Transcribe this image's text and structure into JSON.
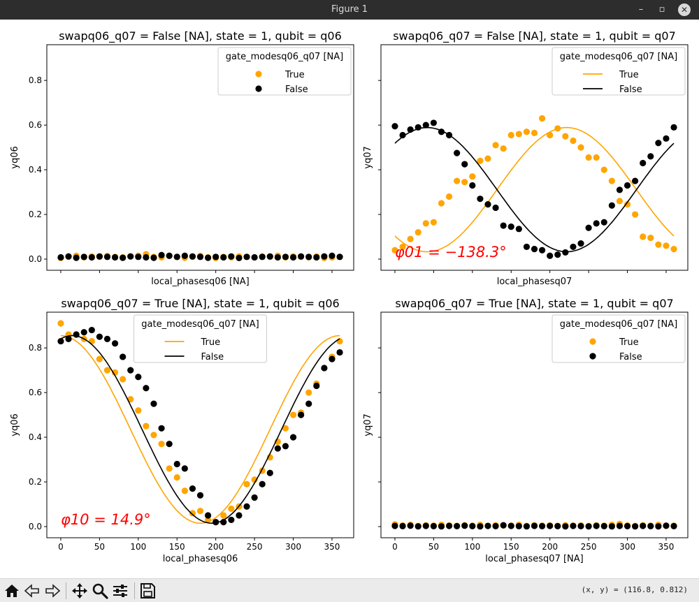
{
  "window": {
    "title": "Figure 1",
    "minimize_glyph": "–",
    "restore_glyph": "▫",
    "close_glyph": "✕"
  },
  "toolbar": {
    "buttons": [
      "home-icon",
      "back-icon",
      "forward-icon",
      "pan-icon",
      "zoom-icon",
      "subplots-icon",
      "save-icon"
    ],
    "coords": "(x, y) = (116.8, 0.812)"
  },
  "colors": {
    "orange": "#ffa500",
    "black": "#000000",
    "annotation": "#ff0000"
  },
  "chart_data": [
    {
      "type": "scatter",
      "title": "swapq06_q07 = False [NA], state = 1, qubit = q06",
      "xlabel": "local_phasesq06 [NA]",
      "ylabel": "yq06",
      "xlim": [
        -18,
        378
      ],
      "ylim": [
        -0.05,
        0.96
      ],
      "show_xticklabels": false,
      "show_yticklabels": true,
      "legend": {
        "title": "gate_modesq06_q07 [NA]",
        "kind": "marker",
        "position": "upper right",
        "entries": [
          "True",
          "False"
        ]
      },
      "series": [
        {
          "name": "True",
          "color": "#ffa500",
          "x": [
            0,
            10,
            20,
            30,
            40,
            50,
            60,
            70,
            80,
            90,
            100,
            110,
            120,
            130,
            140,
            150,
            160,
            170,
            180,
            190,
            200,
            210,
            220,
            230,
            240,
            250,
            260,
            270,
            280,
            290,
            300,
            310,
            320,
            330,
            340,
            350,
            360
          ],
          "y": [
            0.005,
            0.01,
            0.015,
            0.008,
            0.012,
            0.01,
            0.014,
            0.01,
            0.008,
            0.012,
            0.015,
            0.022,
            0.01,
            0.008,
            0.015,
            0.01,
            0.006,
            0.01,
            0.014,
            0.008,
            0.005,
            0.01,
            0.008,
            0.012,
            0.01,
            0.008,
            0.012,
            0.01,
            0.015,
            0.008,
            0.012,
            0.01,
            0.008,
            0.012,
            0.005,
            0.008,
            0.01
          ]
        },
        {
          "name": "False",
          "color": "#000000",
          "x": [
            0,
            10,
            20,
            30,
            40,
            50,
            60,
            70,
            80,
            90,
            100,
            110,
            120,
            130,
            140,
            150,
            160,
            170,
            180,
            190,
            200,
            210,
            220,
            230,
            240,
            250,
            260,
            270,
            280,
            290,
            300,
            310,
            320,
            330,
            340,
            350,
            360
          ],
          "y": [
            0.008,
            0.012,
            0.006,
            0.01,
            0.008,
            0.012,
            0.01,
            0.008,
            0.006,
            0.012,
            0.01,
            0.008,
            0.006,
            0.018,
            0.015,
            0.01,
            0.015,
            0.012,
            0.01,
            0.006,
            0.01,
            0.008,
            0.012,
            0.005,
            0.01,
            0.008,
            0.01,
            0.012,
            0.008,
            0.01,
            0.008,
            0.012,
            0.01,
            0.008,
            0.012,
            0.015,
            0.01
          ]
        }
      ],
      "annotation": ""
    },
    {
      "type": "scatter",
      "title": "swapq06_q07 = False [NA], state = 1, qubit = q07",
      "xlabel": "local_phasesq07",
      "ylabel": "yq07",
      "xlim": [
        -18,
        378
      ],
      "ylim": [
        -0.05,
        0.96
      ],
      "show_xticklabels": false,
      "show_yticklabels": false,
      "legend": {
        "title": "gate_modesq06_q07 [NA]",
        "kind": "line",
        "position": "upper right",
        "entries": [
          "True",
          "False"
        ]
      },
      "series": [
        {
          "name": "True",
          "color": "#ffa500",
          "x": [
            0,
            10,
            20,
            30,
            40,
            50,
            60,
            70,
            80,
            90,
            100,
            110,
            120,
            130,
            140,
            150,
            160,
            170,
            180,
            190,
            200,
            210,
            220,
            230,
            240,
            250,
            260,
            270,
            280,
            290,
            300,
            310,
            320,
            330,
            340,
            350,
            360
          ],
          "y": [
            0.04,
            0.055,
            0.09,
            0.12,
            0.16,
            0.165,
            0.25,
            0.28,
            0.35,
            0.345,
            0.37,
            0.44,
            0.45,
            0.51,
            0.495,
            0.555,
            0.56,
            0.57,
            0.565,
            0.63,
            0.555,
            0.585,
            0.55,
            0.53,
            0.5,
            0.455,
            0.455,
            0.4,
            0.35,
            0.26,
            0.245,
            0.2,
            0.1,
            0.095,
            0.065,
            0.06,
            0.045
          ],
          "fit_x": [
            0,
            360
          ],
          "fit_mean": 0.311,
          "fit_amp": 0.278,
          "fit_phase": -138.3
        },
        {
          "name": "False",
          "color": "#000000",
          "x": [
            0,
            10,
            20,
            30,
            40,
            50,
            60,
            70,
            80,
            90,
            100,
            110,
            120,
            130,
            140,
            150,
            160,
            170,
            180,
            190,
            200,
            210,
            220,
            230,
            240,
            250,
            260,
            270,
            280,
            290,
            300,
            310,
            320,
            330,
            340,
            350,
            360
          ],
          "y": [
            0.595,
            0.555,
            0.58,
            0.59,
            0.6,
            0.61,
            0.57,
            0.555,
            0.475,
            0.425,
            0.33,
            0.27,
            0.245,
            0.23,
            0.15,
            0.145,
            0.135,
            0.055,
            0.045,
            0.04,
            0.015,
            0.02,
            0.03,
            0.055,
            0.07,
            0.14,
            0.16,
            0.165,
            0.24,
            0.31,
            0.33,
            0.35,
            0.43,
            0.46,
            0.52,
            0.54,
            0.59
          ],
          "fit_x": [
            0,
            360
          ],
          "fit_mean": 0.311,
          "fit_amp": 0.278,
          "fit_phase": 41.7
        }
      ],
      "annotation": "φ01 = −138.3°"
    },
    {
      "type": "scatter",
      "title": "swapq06_q07 = True [NA], state = 1, qubit = q06",
      "xlabel": "local_phasesq06",
      "ylabel": "yq06",
      "xlim": [
        -18,
        378
      ],
      "ylim": [
        -0.05,
        0.96
      ],
      "show_xticklabels": true,
      "show_yticklabels": true,
      "legend": {
        "title": "gate_modesq06_q07 [NA]",
        "kind": "line",
        "position": "upper center",
        "entries": [
          "True",
          "False"
        ]
      },
      "series": [
        {
          "name": "True",
          "color": "#ffa500",
          "x": [
            0,
            10,
            20,
            30,
            40,
            50,
            60,
            70,
            80,
            90,
            100,
            110,
            120,
            130,
            140,
            150,
            160,
            170,
            180,
            190,
            200,
            210,
            220,
            230,
            240,
            250,
            260,
            270,
            280,
            290,
            300,
            310,
            320,
            330,
            340,
            350,
            360
          ],
          "y": [
            0.91,
            0.86,
            0.86,
            0.84,
            0.83,
            0.75,
            0.7,
            0.69,
            0.66,
            0.57,
            0.52,
            0.45,
            0.41,
            0.37,
            0.26,
            0.22,
            0.16,
            0.06,
            0.07,
            0.03,
            0.02,
            0.05,
            0.08,
            0.09,
            0.19,
            0.21,
            0.25,
            0.31,
            0.38,
            0.44,
            0.5,
            0.51,
            0.6,
            0.64,
            0.71,
            0.76,
            0.83
          ],
          "fit_x": [
            0,
            360
          ],
          "fit_mean": 0.435,
          "fit_amp": 0.42,
          "fit_phase": 0
        },
        {
          "name": "False",
          "color": "#000000",
          "x": [
            0,
            10,
            20,
            30,
            40,
            50,
            60,
            70,
            80,
            90,
            100,
            110,
            120,
            130,
            140,
            150,
            160,
            170,
            180,
            190,
            200,
            210,
            220,
            230,
            240,
            250,
            260,
            270,
            280,
            290,
            300,
            310,
            320,
            330,
            340,
            350,
            360
          ],
          "y": [
            0.83,
            0.84,
            0.86,
            0.87,
            0.88,
            0.85,
            0.84,
            0.82,
            0.76,
            0.7,
            0.67,
            0.62,
            0.55,
            0.44,
            0.37,
            0.28,
            0.26,
            0.17,
            0.14,
            0.05,
            0.02,
            0.02,
            0.03,
            0.05,
            0.09,
            0.13,
            0.19,
            0.24,
            0.35,
            0.36,
            0.4,
            0.5,
            0.55,
            0.63,
            0.71,
            0.75,
            0.78
          ],
          "fit_x": [
            0,
            360
          ],
          "fit_mean": 0.435,
          "fit_amp": 0.42,
          "fit_phase": 14.9
        }
      ],
      "annotation": "φ10 = 14.9°"
    },
    {
      "type": "scatter",
      "title": "swapq06_q07 = True [NA], state = 1, qubit = q07",
      "xlabel": "local_phasesq07 [NA]",
      "ylabel": "yq07",
      "xlim": [
        -18,
        378
      ],
      "ylim": [
        -0.05,
        0.96
      ],
      "show_xticklabels": true,
      "show_yticklabels": false,
      "legend": {
        "title": "gate_modesq06_q07 [NA]",
        "kind": "marker",
        "position": "upper right",
        "entries": [
          "True",
          "False"
        ]
      },
      "series": [
        {
          "name": "True",
          "color": "#ffa500",
          "x": [
            0,
            10,
            20,
            30,
            40,
            50,
            60,
            70,
            80,
            90,
            100,
            110,
            120,
            130,
            140,
            150,
            160,
            170,
            180,
            190,
            200,
            210,
            220,
            230,
            240,
            250,
            260,
            270,
            280,
            290,
            300,
            310,
            320,
            330,
            340,
            350,
            360
          ],
          "y": [
            0.01,
            0.005,
            0.008,
            0.003,
            0.006,
            0.004,
            0.008,
            0.005,
            0.003,
            0.006,
            0.004,
            0.008,
            0.003,
            0.006,
            0.005,
            0.004,
            0.008,
            0.003,
            0.006,
            0.004,
            0.005,
            0.003,
            0.006,
            0.004,
            0.005,
            0.003,
            0.006,
            0.004,
            0.008,
            0.012,
            0.005,
            0.003,
            0.006,
            0.004,
            0.008,
            0.003,
            0.004
          ]
        },
        {
          "name": "False",
          "color": "#000000",
          "x": [
            0,
            10,
            20,
            30,
            40,
            50,
            60,
            70,
            80,
            90,
            100,
            110,
            120,
            130,
            140,
            150,
            160,
            170,
            180,
            190,
            200,
            210,
            220,
            230,
            240,
            250,
            260,
            270,
            280,
            290,
            300,
            310,
            320,
            330,
            340,
            350,
            360
          ],
          "y": [
            0.003,
            0.002,
            0.004,
            0.001,
            0.003,
            0.002,
            0.001,
            0.003,
            0.002,
            0.004,
            0.002,
            0.001,
            0.003,
            0.002,
            0.006,
            0.003,
            0.002,
            0.001,
            0.003,
            0.002,
            0.003,
            0.002,
            0.001,
            0.003,
            0.002,
            0.001,
            0.003,
            0.002,
            0.001,
            0.003,
            0.002,
            0.001,
            0.003,
            0.002,
            0.001,
            0.004,
            0.002
          ]
        }
      ],
      "annotation": ""
    }
  ]
}
